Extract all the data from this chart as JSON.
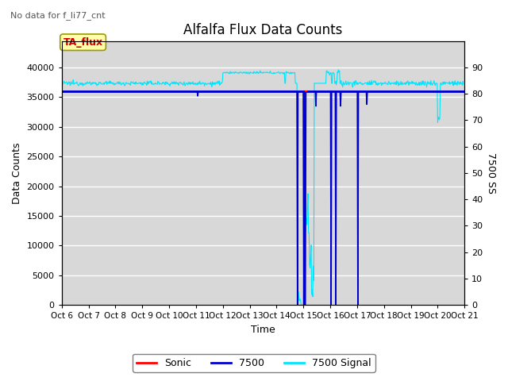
{
  "title": "Alfalfa Flux Data Counts",
  "subtitle": "No data for f_li77_cnt",
  "xlabel": "Time",
  "ylabel_left": "Data Counts",
  "ylabel_right": "7500 SS",
  "legend_label_box": "TA_flux",
  "ylim_left": [
    0,
    44444
  ],
  "ylim_right": [
    0,
    100
  ],
  "yticks_left": [
    0,
    5000,
    10000,
    15000,
    20000,
    25000,
    30000,
    35000,
    40000
  ],
  "yticks_right_vals": [
    0,
    10,
    20,
    30,
    40,
    50,
    60,
    70,
    80,
    90
  ],
  "background_color": "#d8d8d8",
  "plot_bg_color": "#d8d8d8",
  "grid_color": "white",
  "sonic_color": "#ff0000",
  "flux7500_color": "#0000cc",
  "signal7500_color": "#00e5ff",
  "hline_value": 36000,
  "xtick_labels": [
    "Oct 6",
    "Oct 7",
    "Oct 8",
    "Oct 9",
    "Oct 10",
    "Oct 11",
    "Oct 12",
    "Oct 13",
    "Oct 14",
    "Oct 15",
    "Oct 16",
    "Oct 17",
    "Oct 18",
    "Oct 19",
    "Oct 20",
    "Oct 21"
  ],
  "figsize": [
    6.4,
    4.8
  ],
  "dpi": 100
}
